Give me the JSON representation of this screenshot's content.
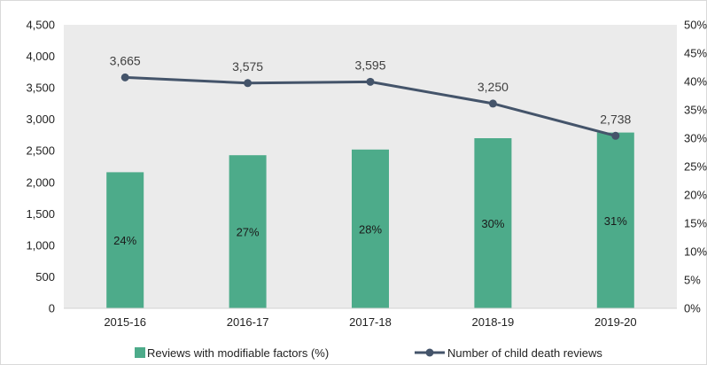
{
  "chart_data": {
    "type": "bar+line",
    "categories": [
      "2015-16",
      "2016-17",
      "2017-18",
      "2018-19",
      "2019-20"
    ],
    "series": [
      {
        "name": "Reviews with modifiable factors (%)",
        "type": "bar",
        "axis": "right",
        "values": [
          24,
          27,
          28,
          30,
          31
        ],
        "labels": [
          "24%",
          "27%",
          "28%",
          "30%",
          "31%"
        ],
        "color": "#4dab8a"
      },
      {
        "name": "Number of child death reviews",
        "type": "line",
        "axis": "left",
        "values": [
          3665,
          3575,
          3595,
          3250,
          2738
        ],
        "labels": [
          "3,665",
          "3,575",
          "3,595",
          "3,250",
          "2,738"
        ],
        "color": "#44546a"
      }
    ],
    "y_left": {
      "min": 0,
      "max": 4500,
      "step": 500,
      "ticks": [
        "0",
        "500",
        "1,000",
        "1,500",
        "2,000",
        "2,500",
        "3,000",
        "3,500",
        "4,000",
        "4,500"
      ]
    },
    "y_right": {
      "min": 0,
      "max": 50,
      "step": 5,
      "ticks": [
        "0%",
        "5%",
        "10%",
        "15%",
        "20%",
        "25%",
        "30%",
        "35%",
        "40%",
        "45%",
        "50%"
      ]
    },
    "background": "#ebebeb",
    "grid": false,
    "legend_position": "bottom"
  }
}
